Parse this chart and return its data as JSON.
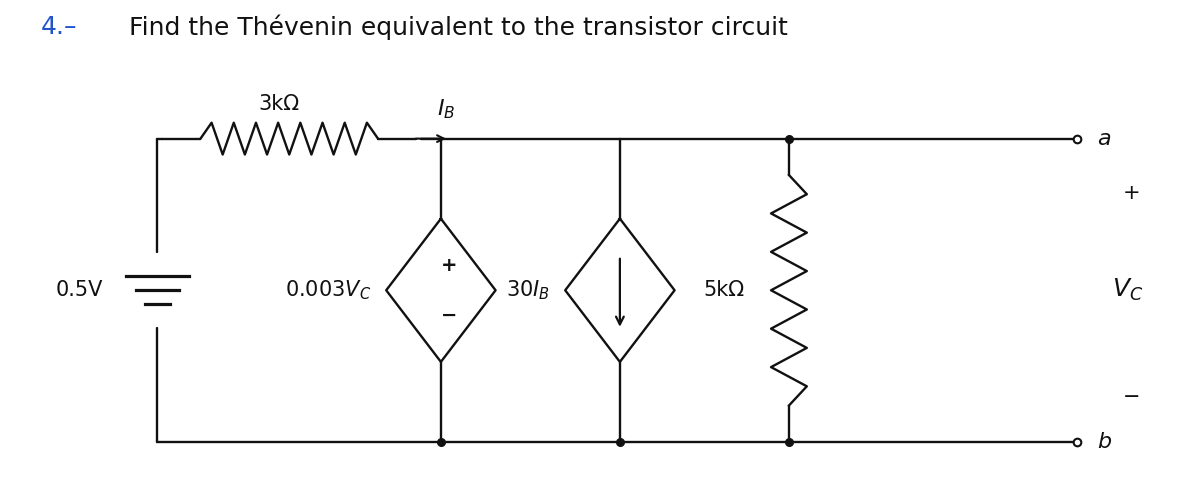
{
  "title_num": "4.–",
  "title_rest": " Find the Thévenin equivalent to the transistor circuit",
  "title_color_num": "#2255cc",
  "title_color_rest": "#111111",
  "bg_color": "#ffffff",
  "line_color": "#111111",
  "figsize": [
    12.0,
    4.98
  ],
  "dpi": 100,
  "xlim": [
    0,
    12
  ],
  "ylim": [
    0,
    4.98
  ],
  "y_top": 3.6,
  "y_bot": 0.55,
  "x_batt": 1.55,
  "x_vsrc": 4.4,
  "x_isrc": 6.2,
  "x_res5k": 7.9,
  "x_term": 10.8,
  "label_3k": "3kΩ",
  "label_IB": "$I_B$",
  "label_05V": "0.5V",
  "label_003Vc": "0.003$V_C$",
  "label_30IB": "30$I_B$",
  "label_5k": "5kΩ",
  "label_Vc": "$V_C$",
  "label_a": "$a$",
  "label_b": "$b$",
  "label_plus": "+",
  "label_minus": "−"
}
